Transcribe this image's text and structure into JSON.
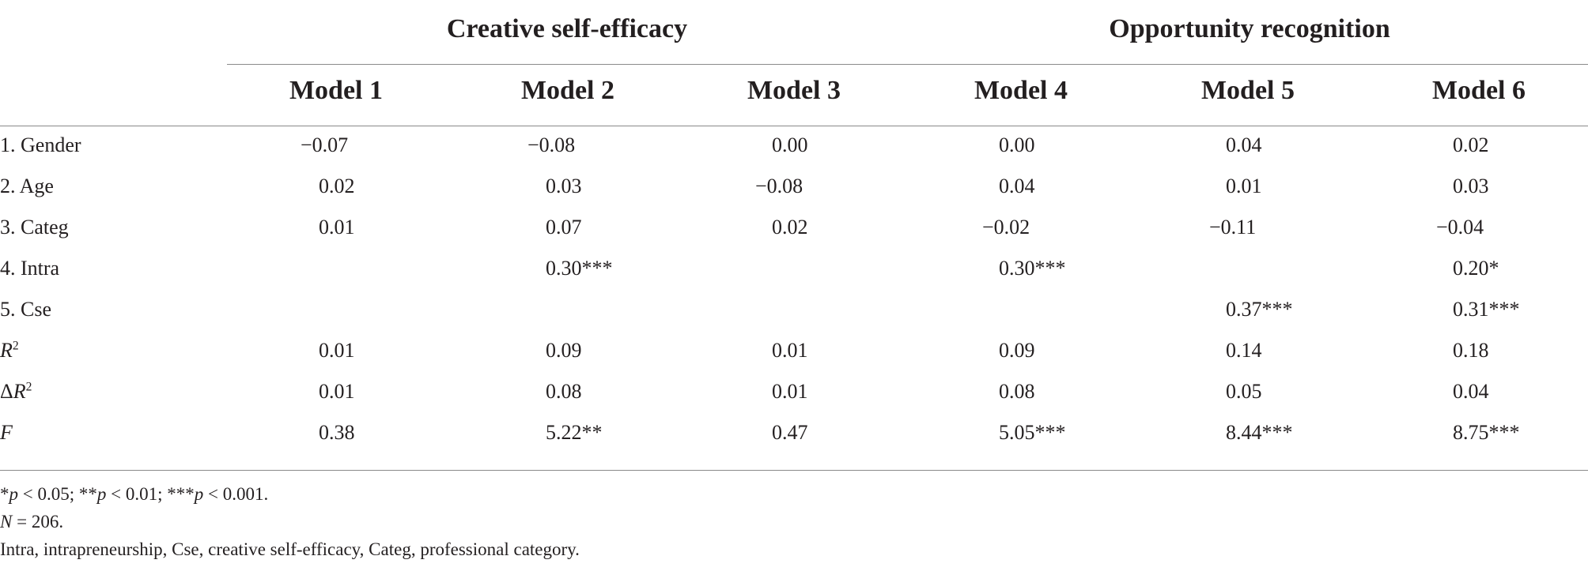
{
  "table": {
    "groups": [
      {
        "label": "Creative self-efficacy"
      },
      {
        "label": "Opportunity recognition"
      }
    ],
    "models": [
      "Model 1",
      "Model 2",
      "Model 3",
      "Model 4",
      "Model 5",
      "Model 6"
    ],
    "rows": [
      {
        "label": "1. Gender",
        "values": [
          "−0.07",
          "−0.08",
          "0.00",
          "0.00",
          "0.04",
          "0.02"
        ]
      },
      {
        "label": "2. Age",
        "values": [
          "0.02",
          "0.03",
          "−0.08",
          "0.04",
          "0.01",
          "0.03"
        ]
      },
      {
        "label": "3. Categ",
        "values": [
          "0.01",
          "0.07",
          "0.02",
          "−0.02",
          "−0.11",
          "−0.04"
        ]
      },
      {
        "label": "4. Intra",
        "values": [
          "",
          "0.30***",
          "",
          "0.30***",
          "",
          "0.20*"
        ]
      },
      {
        "label": "5. Cse",
        "values": [
          "",
          "",
          "",
          "",
          "0.37***",
          "0.31***"
        ]
      },
      {
        "label_prefix": "",
        "label_italic": "R",
        "label_sup": "2",
        "values": [
          "0.01",
          "0.09",
          "0.01",
          "0.09",
          "0.14",
          "0.18"
        ]
      },
      {
        "label_prefix": "Δ",
        "label_italic": "R",
        "label_sup": "2",
        "values": [
          "0.01",
          "0.08",
          "0.01",
          "0.08",
          "0.05",
          "0.04"
        ]
      },
      {
        "label_prefix": "",
        "label_italic": "F",
        "label_sup": "",
        "values": [
          "0.38",
          "5.22**",
          "0.47",
          "5.05***",
          "8.44***",
          "8.75***"
        ]
      }
    ]
  },
  "notes": {
    "significance": {
      "s1_mark": "*",
      "s1_p": "p",
      "s1_rest": " < 0.05; ",
      "s2_mark": "**",
      "s2_p": "p",
      "s2_rest": " < 0.01; ",
      "s3_mark": "***",
      "s3_p": "p",
      "s3_rest": " < 0.001."
    },
    "sample": {
      "n": "N",
      "rest": " = 206."
    },
    "abbreviations": "Intra, intrapreneurship, Cse, creative self-efficacy, Categ, professional category."
  }
}
